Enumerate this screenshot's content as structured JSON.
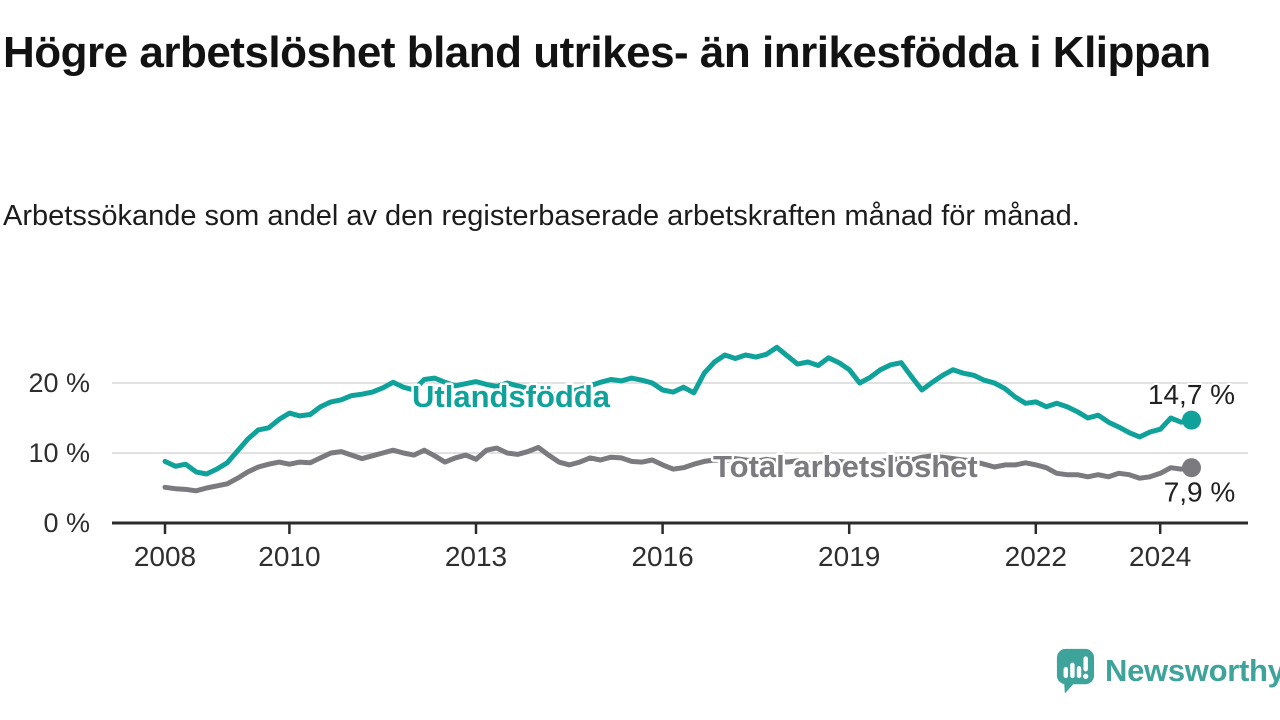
{
  "header": {
    "title": "Högre arbetslöshet bland utrikes- än inrikesfödda i Klippan",
    "subtitle": "Arbetssökande som andel av den registerbaserade arbetskraften månad för månad."
  },
  "branding": {
    "logo_text": "Newsworthy",
    "logo_color": "#3ea39b"
  },
  "chart_data": {
    "type": "line",
    "unit": "%",
    "x_start_year": 2008,
    "x_step_years": 0.1667,
    "xlim": [
      2007.2,
      2025.4
    ],
    "ylim": [
      0,
      26
    ],
    "grid": "horizontal",
    "legend_position": "inline-labels",
    "x_ticks": [
      {
        "year": 2008,
        "label": "2008"
      },
      {
        "year": 2010,
        "label": "2010"
      },
      {
        "year": 2013,
        "label": "2013"
      },
      {
        "year": 2016,
        "label": "2016"
      },
      {
        "year": 2019,
        "label": "2019"
      },
      {
        "year": 2022,
        "label": "2022"
      },
      {
        "year": 2024,
        "label": "2024"
      }
    ],
    "y_ticks": [
      {
        "value": 0,
        "label": "0 %"
      },
      {
        "value": 10,
        "label": "10 %"
      },
      {
        "value": 20,
        "label": "20 %"
      }
    ],
    "series": [
      {
        "name": "Utlandsfödda",
        "color": "#0fa29a",
        "end_value": 14.7,
        "end_label": "14,7 %",
        "values": [
          8.8,
          8.1,
          8.4,
          7.3,
          7.0,
          7.7,
          8.6,
          10.3,
          12.0,
          13.3,
          13.6,
          14.8,
          15.7,
          15.3,
          15.5,
          16.6,
          17.3,
          17.6,
          18.2,
          18.4,
          18.7,
          19.3,
          20.1,
          19.4,
          19.0,
          20.5,
          20.7,
          20.1,
          19.6,
          19.9,
          20.2,
          19.8,
          19.5,
          20.0,
          19.6,
          19.2,
          19.0,
          18.5,
          18.3,
          18.7,
          19.1,
          19.6,
          20.1,
          20.5,
          20.3,
          20.7,
          20.4,
          20.0,
          19.0,
          18.7,
          19.4,
          18.6,
          21.4,
          23.0,
          24.0,
          23.5,
          24.0,
          23.7,
          24.1,
          25.1,
          23.9,
          22.7,
          23.0,
          22.5,
          23.6,
          22.9,
          21.9,
          20.0,
          20.8,
          21.9,
          22.6,
          22.9,
          20.9,
          19.0,
          20.1,
          21.1,
          21.9,
          21.4,
          21.1,
          20.4,
          20.0,
          19.2,
          18.0,
          17.1,
          17.3,
          16.6,
          17.1,
          16.6,
          15.9,
          15.0,
          15.4,
          14.4,
          13.7,
          12.9,
          12.3,
          13.0,
          13.4,
          15.0,
          14.4,
          14.7
        ]
      },
      {
        "name": "Total arbetslöshet",
        "color": "#7b7b7f",
        "end_value": 7.9,
        "end_label": "7,9 %",
        "values": [
          5.1,
          4.9,
          4.8,
          4.6,
          5.0,
          5.3,
          5.6,
          6.4,
          7.3,
          8.0,
          8.4,
          8.7,
          8.4,
          8.7,
          8.6,
          9.3,
          10.0,
          10.2,
          9.7,
          9.2,
          9.6,
          10.0,
          10.4,
          10.0,
          9.7,
          10.4,
          9.6,
          8.7,
          9.3,
          9.7,
          9.1,
          10.4,
          10.7,
          10.0,
          9.8,
          10.2,
          10.8,
          9.7,
          8.7,
          8.3,
          8.7,
          9.3,
          9.0,
          9.4,
          9.3,
          8.8,
          8.7,
          9.0,
          8.3,
          7.7,
          7.9,
          8.4,
          8.8,
          9.0,
          8.9,
          9.2,
          9.0,
          8.8,
          9.1,
          8.9,
          8.7,
          8.9,
          8.6,
          8.4,
          8.6,
          8.8,
          8.6,
          8.4,
          8.6,
          8.8,
          9.0,
          9.2,
          9.0,
          9.4,
          9.6,
          9.4,
          9.2,
          9.0,
          8.8,
          8.4,
          8.0,
          8.3,
          8.3,
          8.6,
          8.3,
          7.9,
          7.1,
          6.9,
          6.9,
          6.6,
          6.9,
          6.6,
          7.1,
          6.9,
          6.4,
          6.6,
          7.1,
          7.9,
          7.7,
          7.9
        ]
      }
    ]
  }
}
